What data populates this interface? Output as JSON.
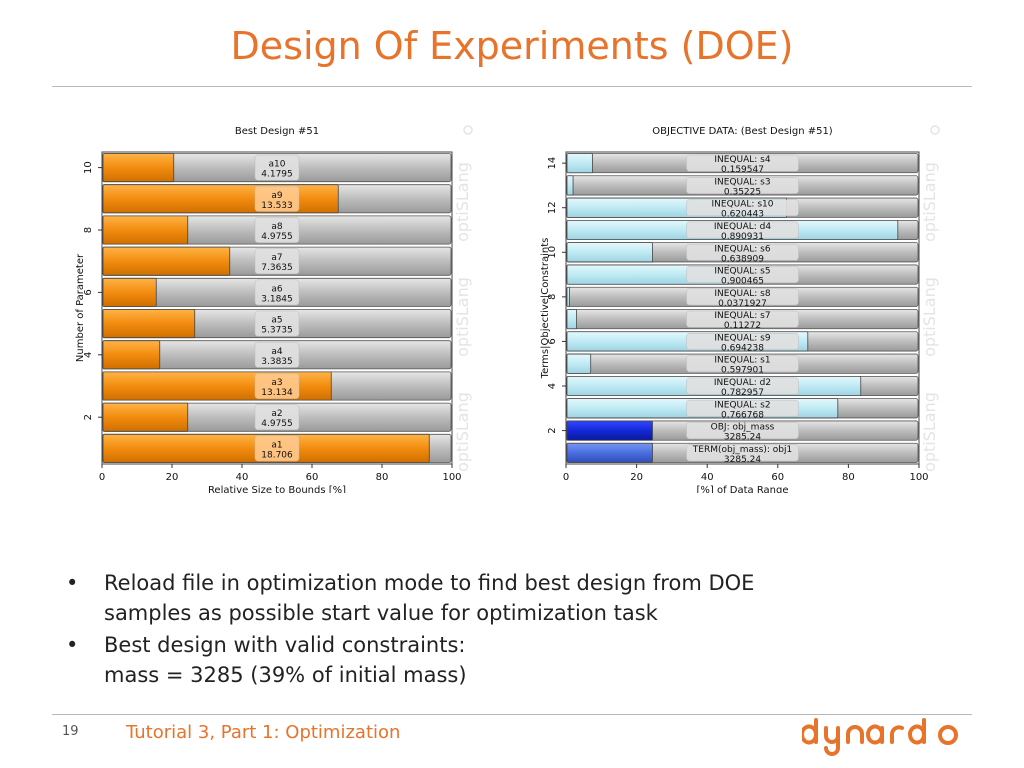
{
  "slide": {
    "title": "Design Of Experiments (DOE)",
    "bullets": [
      {
        "line1": "Reload file in optimization mode to find best design from DOE",
        "line2": "samples as possible start value for optimization task"
      },
      {
        "line1": "Best design with valid constraints:",
        "line2": "mass = 3285 (39% of initial mass)"
      }
    ],
    "footer": {
      "page_number": "19",
      "text": "Tutorial 3, Part 1: Optimization",
      "logo_text": "dynardo"
    },
    "colors": {
      "accent": "#e8732a",
      "orange_bar": "#f28c0f",
      "light_blue_bar": "#bfeaf4",
      "blue_bar": "#1428d8",
      "mid_blue_bar": "#4a6ee0",
      "track": "#c6c6c6"
    }
  },
  "chart_data": [
    {
      "type": "bar",
      "orientation": "horizontal",
      "title": "Best Design #51",
      "xlabel": "Relative Size to Bounds [%]",
      "ylabel": "Number of Parameter",
      "xlim": [
        0,
        100
      ],
      "xticks": [
        "0",
        "20",
        "40",
        "60",
        "80",
        "100"
      ],
      "yticks": [
        "2",
        "4",
        "6",
        "8",
        "10"
      ],
      "watermark": "optiSLang",
      "bars": [
        {
          "name": "a1",
          "value_label": "18.706",
          "percent": 93.5,
          "highlight": true
        },
        {
          "name": "a2",
          "value_label": "4.9755",
          "percent": 24.5,
          "highlight": false
        },
        {
          "name": "a3",
          "value_label": "13.134",
          "percent": 65.5,
          "highlight": true
        },
        {
          "name": "a4",
          "value_label": "3.3835",
          "percent": 16.5,
          "highlight": false
        },
        {
          "name": "a5",
          "value_label": "5.3735",
          "percent": 26.5,
          "highlight": false
        },
        {
          "name": "a6",
          "value_label": "3.1845",
          "percent": 15.5,
          "highlight": false
        },
        {
          "name": "a7",
          "value_label": "7.3635",
          "percent": 36.5,
          "highlight": false
        },
        {
          "name": "a8",
          "value_label": "4.9755",
          "percent": 24.5,
          "highlight": false
        },
        {
          "name": "a9",
          "value_label": "13.533",
          "percent": 67.5,
          "highlight": true
        },
        {
          "name": "a10",
          "value_label": "4.1795",
          "percent": 20.5,
          "highlight": false
        }
      ]
    },
    {
      "type": "bar",
      "orientation": "horizontal",
      "title": "OBJECTIVE DATA: (Best Design #51)",
      "xlabel": "[%] of Data Range",
      "ylabel": "Terms|Objective|Constraints",
      "xlim": [
        0,
        100
      ],
      "xticks": [
        "0",
        "20",
        "40",
        "60",
        "80",
        "100"
      ],
      "yticks": [
        "2",
        "4",
        "6",
        "8",
        "10",
        "12",
        "14"
      ],
      "watermark": "optiSLang",
      "bars": [
        {
          "name": "TERM(obj_mass): obj1",
          "value_label": "3285.24",
          "percent": 24.5,
          "kind": "term"
        },
        {
          "name": "OBJ: obj_mass",
          "value_label": "3285.24",
          "percent": 24.5,
          "kind": "objective"
        },
        {
          "name": "INEQUAL: s2",
          "value_label": "0.766768",
          "percent": 77,
          "kind": "constraint"
        },
        {
          "name": "INEQUAL: d2",
          "value_label": "0.782957",
          "percent": 83.5,
          "kind": "constraint"
        },
        {
          "name": "INEQUAL: s1",
          "value_label": "0.597901",
          "percent": 7,
          "kind": "constraint"
        },
        {
          "name": "INEQUAL: s9",
          "value_label": "0.694238",
          "percent": 68.5,
          "kind": "constraint"
        },
        {
          "name": "INEQUAL: s7",
          "value_label": "0.11272",
          "percent": 3,
          "kind": "constraint"
        },
        {
          "name": "INEQUAL: s8",
          "value_label": "0.0371927",
          "percent": 1,
          "kind": "constraint"
        },
        {
          "name": "INEQUAL: s5",
          "value_label": "0.900465",
          "percent": 46,
          "kind": "constraint"
        },
        {
          "name": "INEQUAL: s6",
          "value_label": "0.638909",
          "percent": 24.5,
          "kind": "constraint"
        },
        {
          "name": "INEQUAL: d4",
          "value_label": "0.890931",
          "percent": 94,
          "kind": "constraint"
        },
        {
          "name": "INEQUAL: s10",
          "value_label": "0.620443",
          "percent": 62.5,
          "kind": "constraint"
        },
        {
          "name": "INEQUAL: s3",
          "value_label": "0.35225",
          "percent": 2,
          "kind": "constraint"
        },
        {
          "name": "INEQUAL: s4",
          "value_label": "0.159547",
          "percent": 7.5,
          "kind": "constraint"
        }
      ]
    }
  ]
}
